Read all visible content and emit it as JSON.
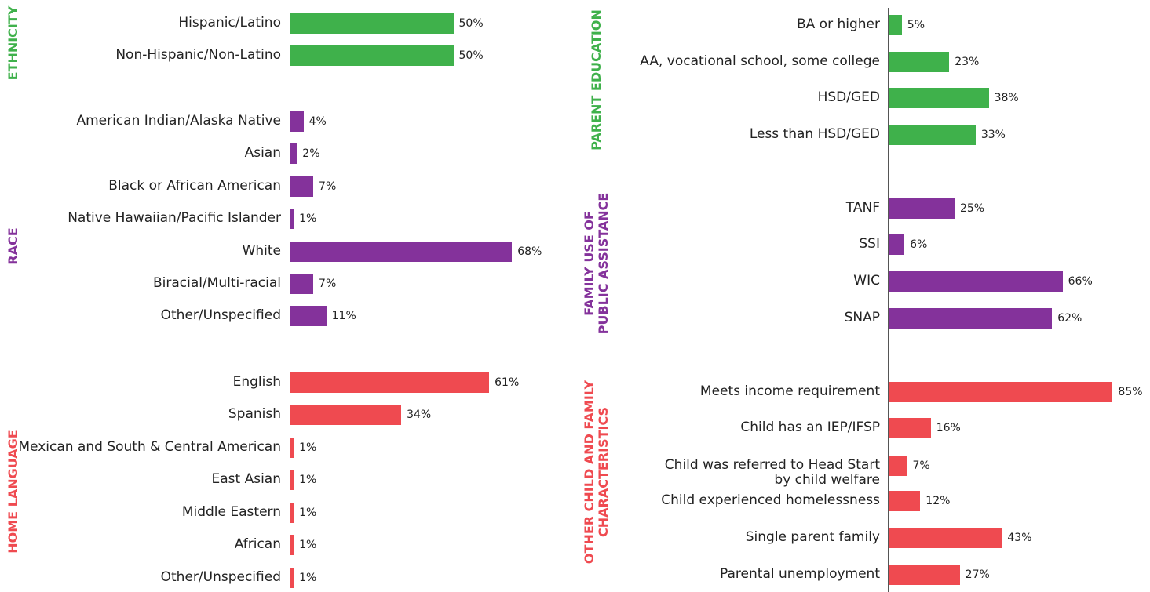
{
  "colors": {
    "green": "#3fb14b",
    "purple": "#84329b",
    "red": "#ef4a50"
  },
  "chart_data": [
    {
      "type": "bar",
      "orientation": "horizontal",
      "panel": "left",
      "xlim": [
        0,
        100
      ],
      "groups": [
        {
          "title": "ETHNICITY",
          "color": "green",
          "categories": [
            "Hispanic/Latino",
            "Non-Hispanic/Non-Latino"
          ],
          "values": [
            50,
            50
          ],
          "value_labels": [
            "50%",
            "50%"
          ]
        },
        {
          "title": "RACE",
          "color": "purple",
          "categories": [
            "American Indian/Alaska Native",
            "Asian",
            "Black or African American",
            "Native Hawaiian/Pacific Islander",
            "White",
            "Biracial/Multi-racial",
            "Other/Unspecified"
          ],
          "values": [
            4,
            2,
            7,
            1,
            68,
            7,
            11
          ],
          "value_labels": [
            "4%",
            "2%",
            "7%",
            "1%",
            "68%",
            "7%",
            "11%"
          ]
        },
        {
          "title": "HOME LANGUAGE",
          "color": "red",
          "categories": [
            "English",
            "Spanish",
            "Mexican and South & Central American",
            "East Asian",
            "Middle Eastern",
            "African",
            "Other/Unspecified"
          ],
          "values": [
            61,
            34,
            1,
            1,
            1,
            1,
            1
          ],
          "value_labels": [
            "61%",
            "34%",
            "1%",
            "1%",
            "1%",
            "1%",
            "1%"
          ]
        }
      ]
    },
    {
      "type": "bar",
      "orientation": "horizontal",
      "panel": "right",
      "xlim": [
        0,
        100
      ],
      "groups": [
        {
          "title": "PARENT EDUCATION",
          "color": "green",
          "categories": [
            "BA or higher",
            "AA, vocational school, some college",
            "HSD/GED",
            "Less than HSD/GED"
          ],
          "values": [
            5,
            23,
            38,
            33
          ],
          "value_labels": [
            "5%",
            "23%",
            "38%",
            "33%"
          ]
        },
        {
          "title": "FAMILY USE OF\nPUBLIC ASSISTANCE",
          "color": "purple",
          "categories": [
            "TANF",
            "SSI",
            "WIC",
            "SNAP"
          ],
          "values": [
            25,
            6,
            66,
            62
          ],
          "value_labels": [
            "25%",
            "6%",
            "66%",
            "62%"
          ]
        },
        {
          "title": "OTHER CHILD AND FAMILY\nCHARACTERISTICS",
          "color": "red",
          "categories": [
            "Meets income requirement",
            "Child has an IEP/IFSP",
            "Child was referred to Head Start\nby child welfare",
            "Child experienced homelessness",
            "Single parent family",
            "Parental unemployment"
          ],
          "values": [
            85,
            16,
            7,
            12,
            43,
            27
          ],
          "value_labels": [
            "85%",
            "16%",
            "7%",
            "12%",
            "43%",
            "27%"
          ]
        }
      ]
    }
  ]
}
